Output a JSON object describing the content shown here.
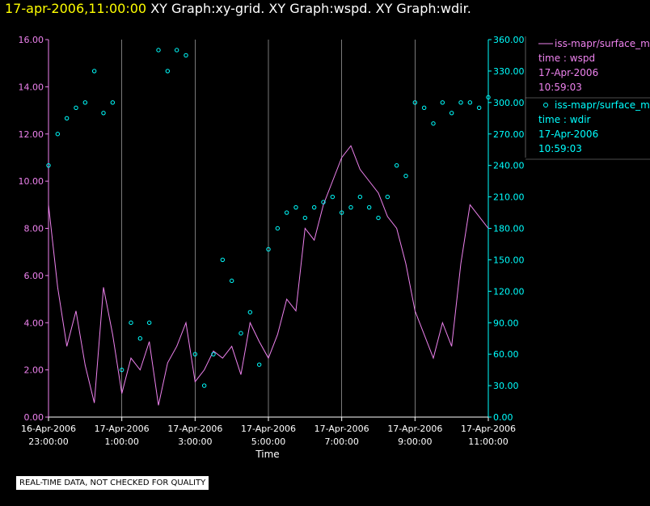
{
  "header": {
    "timestamp": "17-apr-2006,11:00:00",
    "graphs": "XY Graph:xy-grid.  XY Graph:wspd.  XY Graph:wdir."
  },
  "footer": {
    "notice": "REAL-TIME DATA, NOT CHECKED FOR QUALITY"
  },
  "colors": {
    "wspd": "#ee82ee",
    "wdir": "#00ffff",
    "left_axis": "#ee82ee",
    "right_axis": "#00ffff",
    "grid": "#ffffff",
    "background": "#000000"
  },
  "legend": [
    {
      "series": "wspd",
      "source": "iss-mapr/surface_m",
      "line2": "time : wspd",
      "date": "17-Apr-2006",
      "time": "10:59:03"
    },
    {
      "series": "wdir",
      "source": "iss-mapr/surface_m",
      "line2": "time : wdir",
      "date": "17-Apr-2006",
      "time": "10:59:03"
    }
  ],
  "chart_data": {
    "type": "line",
    "xlabel": "Time",
    "x_ticks": [
      [
        "16-Apr-2006",
        "23:00:00"
      ],
      [
        "17-Apr-2006",
        "1:00:00"
      ],
      [
        "17-Apr-2006",
        "3:00:00"
      ],
      [
        "17-Apr-2006",
        "5:00:00"
      ],
      [
        "17-Apr-2006",
        "7:00:00"
      ],
      [
        "17-Apr-2006",
        "9:00:00"
      ],
      [
        "17-Apr-2006",
        "11:00:00"
      ]
    ],
    "x_range_hours": [
      "16-Apr-2006 23:00:00",
      "17-Apr-2006 11:00:00"
    ],
    "left_axis": {
      "min": 0,
      "max": 16,
      "ticks": [
        "0.00",
        "2.00",
        "4.00",
        "6.00",
        "8.00",
        "10.00",
        "12.00",
        "14.00",
        "16.00"
      ]
    },
    "right_axis": {
      "min": 0,
      "max": 360,
      "ticks": [
        "0.00",
        "30.00",
        "60.00",
        "90.00",
        "120.00",
        "150.00",
        "180.00",
        "210.00",
        "240.00",
        "270.00",
        "300.00",
        "330.00",
        "360.00"
      ]
    },
    "grid": "vertical lines at each labeled time tick",
    "series": [
      {
        "key": "wspd",
        "style": "line",
        "axis": "left",
        "x_hours": [
          0,
          0.25,
          0.5,
          0.75,
          1,
          1.25,
          1.5,
          1.75,
          2,
          2.25,
          2.5,
          2.75,
          3,
          3.25,
          3.5,
          3.75,
          4,
          4.25,
          4.5,
          4.75,
          5,
          5.25,
          5.5,
          5.75,
          6,
          6.25,
          6.5,
          6.75,
          7,
          7.25,
          7.5,
          7.75,
          8,
          8.25,
          8.5,
          8.75,
          9,
          9.25,
          9.5,
          9.75,
          10,
          10.25,
          10.5,
          10.75,
          11,
          11.25,
          11.5,
          11.75,
          12
        ],
        "values": [
          9.0,
          5.5,
          3.0,
          4.5,
          2.2,
          0.6,
          5.5,
          3.5,
          1.0,
          2.5,
          2.0,
          3.2,
          0.5,
          2.3,
          3.0,
          4.0,
          1.5,
          2.0,
          2.8,
          2.5,
          3.0,
          1.8,
          4.0,
          3.2,
          2.5,
          3.5,
          5.0,
          4.5,
          8.0,
          7.5,
          9.0,
          10.0,
          11.0,
          11.5,
          10.5,
          10.0,
          9.5,
          8.5,
          8.0,
          6.5,
          4.5,
          3.5,
          2.5,
          4.0,
          3.0,
          6.5,
          9.0,
          8.5,
          8.0
        ]
      },
      {
        "key": "wdir",
        "style": "circles",
        "axis": "right",
        "x_hours": [
          0,
          0.25,
          0.5,
          0.75,
          1,
          1.25,
          1.5,
          1.75,
          2,
          2.25,
          2.5,
          2.75,
          3,
          3.25,
          3.5,
          3.75,
          4,
          4.25,
          4.5,
          4.75,
          5,
          5.25,
          5.5,
          5.75,
          6,
          6.25,
          6.5,
          6.75,
          7,
          7.25,
          7.5,
          7.75,
          8,
          8.25,
          8.5,
          8.75,
          9,
          9.25,
          9.5,
          9.75,
          10,
          10.25,
          10.5,
          10.75,
          11,
          11.25,
          11.5,
          11.75,
          12
        ],
        "values": [
          240,
          270,
          285,
          295,
          300,
          330,
          290,
          300,
          45,
          90,
          75,
          90,
          350,
          330,
          350,
          345,
          60,
          30,
          60,
          150,
          130,
          80,
          100,
          50,
          160,
          180,
          195,
          200,
          190,
          200,
          205,
          210,
          195,
          200,
          210,
          200,
          190,
          210,
          240,
          230,
          300,
          295,
          280,
          300,
          290,
          300,
          300,
          295,
          305
        ]
      }
    ]
  }
}
